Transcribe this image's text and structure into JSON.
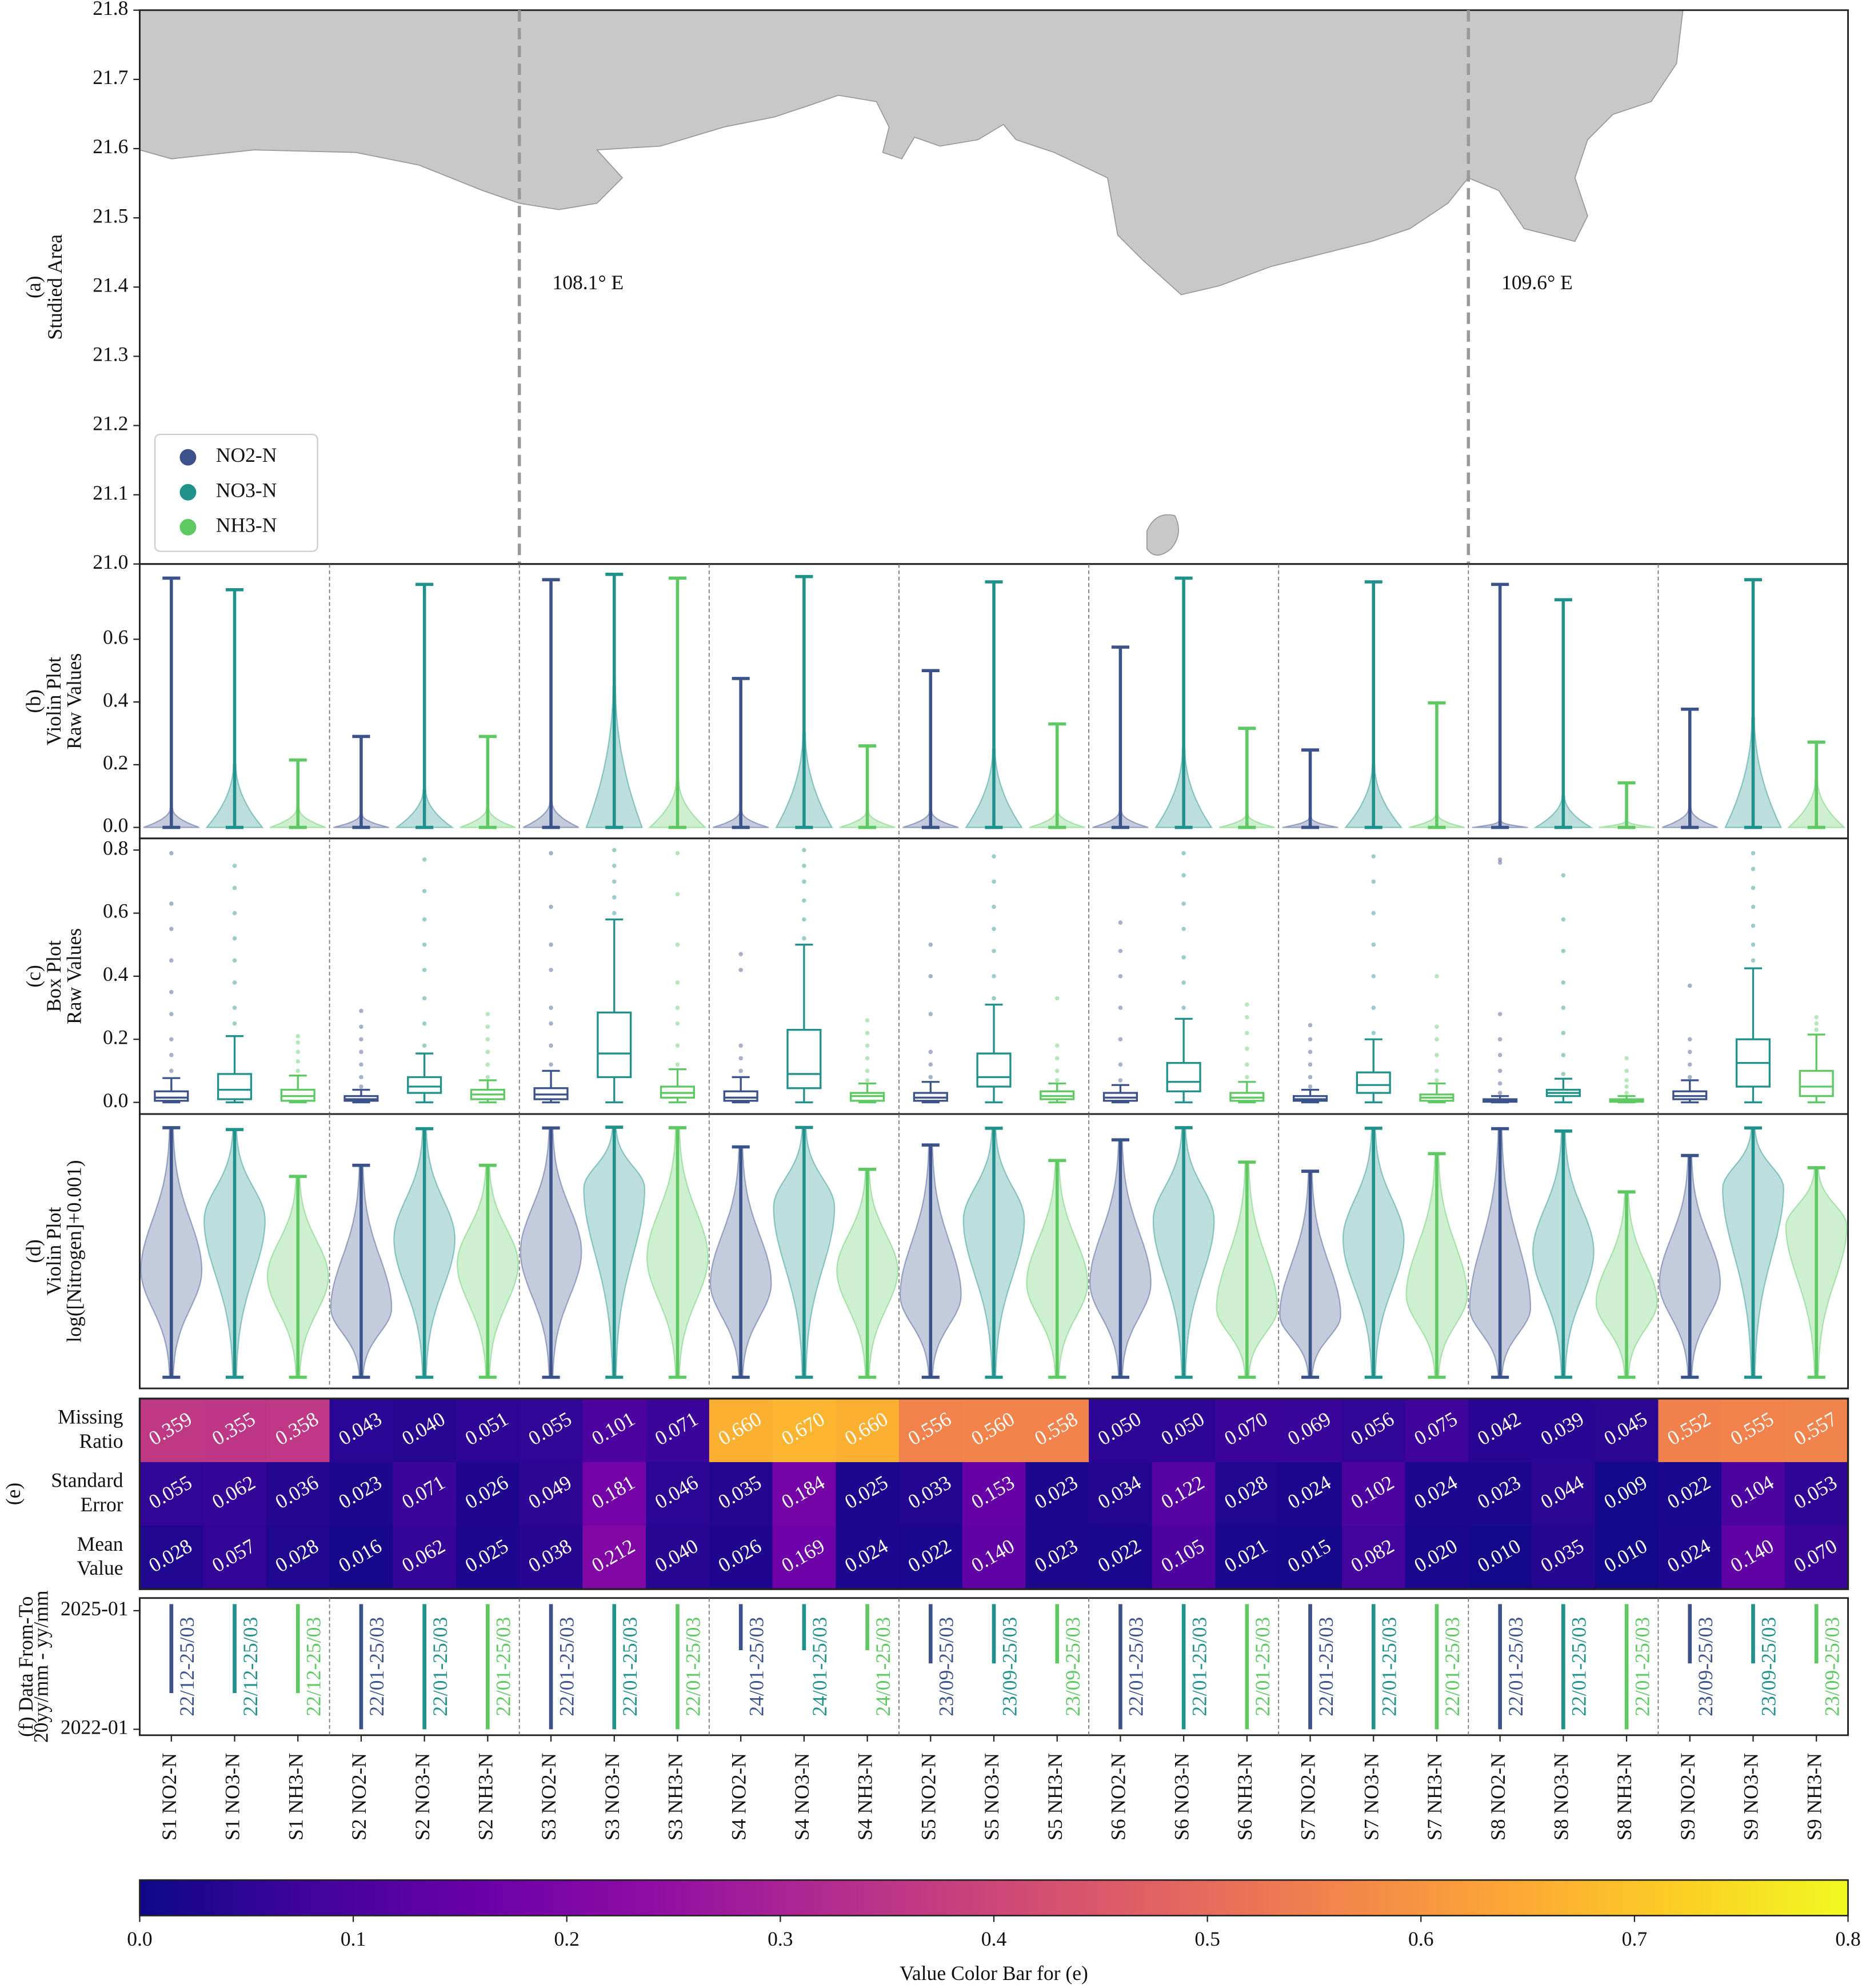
{
  "chart_data": [
    {
      "type": "map",
      "ylabel": [
        "(a)",
        "Studied Area"
      ],
      "xlim": [
        107.5,
        110.2
      ],
      "ylim": [
        21,
        21.8
      ],
      "yticks": [
        {
          "value": 21,
          "label": "21.0"
        },
        21.1,
        21.2,
        21.3,
        21.4,
        21.5,
        21.6,
        21.7,
        21.8
      ],
      "vlines": [
        {
          "value": 108.1,
          "label": "108.1° E"
        },
        {
          "value": 109.6,
          "label": "109.6° E"
        }
      ],
      "series": [
        {
          "name": "NO2-N",
          "color": "#3b528b"
        },
        {
          "name": "NO3-N",
          "color": "#21918c"
        },
        {
          "name": "NH3-N",
          "color": "#5ec962"
        }
      ],
      "legend": "lower left"
    },
    {
      "type": "violin",
      "ylabel": [
        "(b)",
        "Violin Plot",
        "Raw Values"
      ],
      "ylim": [
        -0.035,
        0.84
      ],
      "yticks": [
        {
          "value": 0,
          "label": "0.0"
        },
        0.2,
        0.4,
        0.6
      ],
      "min": [
        0,
        0,
        0,
        0,
        0,
        0,
        0,
        0,
        0,
        0,
        0,
        0,
        0,
        0,
        0,
        0,
        0,
        0,
        0,
        0,
        0,
        0,
        0,
        0,
        0,
        0,
        0
      ],
      "body_top": [
        0.06,
        0.2,
        0.06,
        0.04,
        0.12,
        0.06,
        0.08,
        0.45,
        0.15,
        0.05,
        0.3,
        0.05,
        0.05,
        0.25,
        0.05,
        0.05,
        0.25,
        0.04,
        0.03,
        0.2,
        0.04,
        0.02,
        0.1,
        0.02,
        0.06,
        0.35,
        0.15
      ],
      "max": [
        0.795,
        0.758,
        0.215,
        0.29,
        0.775,
        0.29,
        0.79,
        0.807,
        0.795,
        0.475,
        0.8,
        0.26,
        0.5,
        0.783,
        0.33,
        0.575,
        0.795,
        0.316,
        0.247,
        0.783,
        0.397,
        0.775,
        0.726,
        0.142,
        0.377,
        0.79,
        0.272
      ]
    },
    {
      "type": "box",
      "ylabel": [
        "(c)",
        "Box Plot",
        "Raw Values"
      ],
      "ylim": [
        -0.037,
        0.837
      ],
      "yticks": [
        {
          "value": 0,
          "label": "0.0"
        },
        0.2,
        0.4,
        0.6,
        0.8
      ],
      "whislo": [
        0,
        0,
        0,
        0,
        0,
        0,
        0,
        0,
        0,
        0,
        0,
        0,
        0,
        0,
        0,
        0,
        0,
        0,
        0,
        0,
        0,
        0,
        0,
        0,
        0,
        0,
        0
      ],
      "q1": [
        0.005,
        0.01,
        0.005,
        0.005,
        0.03,
        0.01,
        0.01,
        0.08,
        0.015,
        0.005,
        0.045,
        0.005,
        0.005,
        0.05,
        0.01,
        0.005,
        0.035,
        0.005,
        0.005,
        0.03,
        0.005,
        0.002,
        0.02,
        0.002,
        0.01,
        0.05,
        0.02
      ],
      "median": [
        0.015,
        0.04,
        0.02,
        0.01,
        0.05,
        0.025,
        0.025,
        0.155,
        0.03,
        0.015,
        0.09,
        0.02,
        0.015,
        0.08,
        0.02,
        0.015,
        0.065,
        0.015,
        0.01,
        0.055,
        0.015,
        0.005,
        0.03,
        0.005,
        0.02,
        0.125,
        0.05
      ],
      "q3": [
        0.035,
        0.09,
        0.04,
        0.02,
        0.08,
        0.04,
        0.045,
        0.285,
        0.05,
        0.035,
        0.23,
        0.03,
        0.03,
        0.155,
        0.035,
        0.03,
        0.125,
        0.03,
        0.02,
        0.095,
        0.025,
        0.01,
        0.04,
        0.01,
        0.035,
        0.2,
        0.1
      ],
      "whishi": [
        0.077,
        0.21,
        0.085,
        0.04,
        0.155,
        0.07,
        0.1,
        0.58,
        0.105,
        0.08,
        0.5,
        0.06,
        0.065,
        0.31,
        0.06,
        0.055,
        0.265,
        0.065,
        0.04,
        0.2,
        0.06,
        0.02,
        0.075,
        0.02,
        0.07,
        0.425,
        0.215
      ],
      "outliers": [
        [
          0.1,
          0.15,
          0.2,
          0.28,
          0.35,
          0.45,
          0.55,
          0.63,
          0.79
        ],
        [
          0.25,
          0.3,
          0.38,
          0.45,
          0.52,
          0.6,
          0.68,
          0.75
        ],
        [
          0.1,
          0.13,
          0.16,
          0.19,
          0.21
        ],
        [
          0.05,
          0.08,
          0.12,
          0.16,
          0.2,
          0.24,
          0.29
        ],
        [
          0.18,
          0.25,
          0.33,
          0.42,
          0.5,
          0.58,
          0.67,
          0.77
        ],
        [
          0.08,
          0.12,
          0.16,
          0.2,
          0.24,
          0.28
        ],
        [
          0.12,
          0.18,
          0.25,
          0.3,
          0.42,
          0.5,
          0.62,
          0.79
        ],
        [
          0.6,
          0.65,
          0.7,
          0.75,
          0.8
        ],
        [
          0.12,
          0.18,
          0.25,
          0.3,
          0.38,
          0.5,
          0.66,
          0.79
        ],
        [
          0.1,
          0.14,
          0.18,
          0.42,
          0.47
        ],
        [
          0.52,
          0.58,
          0.64,
          0.7,
          0.75,
          0.8
        ],
        [
          0.07,
          0.1,
          0.14,
          0.18,
          0.22,
          0.26
        ],
        [
          0.08,
          0.12,
          0.16,
          0.28,
          0.4,
          0.5
        ],
        [
          0.33,
          0.4,
          0.48,
          0.55,
          0.62,
          0.7,
          0.78
        ],
        [
          0.07,
          0.1,
          0.14,
          0.18,
          0.33
        ],
        [
          0.07,
          0.12,
          0.2,
          0.3,
          0.4,
          0.48,
          0.57
        ],
        [
          0.3,
          0.38,
          0.46,
          0.55,
          0.63,
          0.72,
          0.79
        ],
        [
          0.08,
          0.12,
          0.17,
          0.22,
          0.27,
          0.31
        ],
        [
          0.05,
          0.08,
          0.12,
          0.16,
          0.2,
          0.245
        ],
        [
          0.22,
          0.3,
          0.4,
          0.5,
          0.6,
          0.7,
          0.78
        ],
        [
          0.07,
          0.1,
          0.15,
          0.2,
          0.24,
          0.4
        ],
        [
          0.03,
          0.06,
          0.1,
          0.15,
          0.2,
          0.28,
          0.76,
          0.77
        ],
        [
          0.09,
          0.15,
          0.22,
          0.3,
          0.38,
          0.48,
          0.58,
          0.72
        ],
        [
          0.03,
          0.05,
          0.07,
          0.1,
          0.14
        ],
        [
          0.08,
          0.12,
          0.16,
          0.2,
          0.37
        ],
        [
          0.45,
          0.5,
          0.56,
          0.62,
          0.68,
          0.74,
          0.79
        ],
        [
          0.23,
          0.25,
          0.27
        ]
      ]
    },
    {
      "type": "violin",
      "ylabel": [
        "(d)",
        "Violin Plot",
        "log([Nitrogen]+0.001)"
      ],
      "ylim": [
        -3.13,
        0.06
      ],
      "min": [
        -3,
        -3,
        -3,
        -3,
        -3,
        -3,
        -3,
        -3,
        -3,
        -3,
        -3,
        -3,
        -3,
        -3,
        -3,
        -3,
        -3,
        -3,
        -3,
        -3,
        -3,
        -3,
        -3,
        -3,
        -3,
        -3,
        -3
      ],
      "mode": [
        -1.76,
        -1.17,
        -1.83,
        -2.2,
        -1.39,
        -1.68,
        -1.54,
        -0.8,
        -1.61,
        -1.91,
        -1.02,
        -1.76,
        -2.05,
        -1.17,
        -1.91,
        -1.91,
        -1.17,
        -2.2,
        -2.28,
        -1.39,
        -2.05,
        -2.2,
        -1.54,
        -2.13,
        -1.91,
        -0.8,
        -1.24
      ],
      "max": [
        -0.099,
        -0.12,
        -0.665,
        -0.536,
        -0.11,
        -0.536,
        -0.102,
        -0.093,
        -0.099,
        -0.322,
        -0.096,
        -0.583,
        -0.3,
        -0.105,
        -0.48,
        -0.24,
        -0.099,
        -0.499,
        -0.605,
        -0.105,
        -0.4,
        -0.11,
        -0.138,
        -0.845,
        -0.422,
        -0.102,
        -0.564
      ]
    },
    {
      "type": "heatmap",
      "side_label": "(e)",
      "colormap": "plasma",
      "rows": [
        {
          "label": [
            "Missing",
            "Ratio"
          ],
          "values": [
            0.359,
            0.355,
            0.358,
            0.043,
            0.04,
            0.051,
            0.055,
            0.101,
            0.071,
            0.66,
            0.67,
            0.66,
            0.556,
            0.56,
            0.558,
            0.05,
            0.05,
            0.07,
            0.069,
            0.056,
            0.075,
            0.042,
            0.039,
            0.045,
            0.552,
            0.555,
            0.557
          ],
          "value_labels": [
            "0.359",
            "0.355",
            "0.358",
            "0.043",
            "0.040",
            "0.051",
            "0.055",
            "0.101",
            "0.071",
            "0.660",
            "0.670",
            "0.660",
            "0.556",
            "0.560",
            "0.558",
            "0.050",
            "0.050",
            "0.070",
            "0.069",
            "0.056",
            "0.075",
            "0.042",
            "0.039",
            "0.045",
            "0.552",
            "0.555",
            "0.557"
          ]
        },
        {
          "label": [
            "Standard",
            "Error"
          ],
          "values": [
            0.055,
            0.062,
            0.036,
            0.023,
            0.071,
            0.026,
            0.049,
            0.181,
            0.046,
            0.035,
            0.184,
            0.025,
            0.033,
            0.153,
            0.023,
            0.034,
            0.122,
            0.028,
            0.024,
            0.102,
            0.024,
            0.023,
            0.044,
            0.009,
            0.022,
            0.104,
            0.053
          ],
          "value_labels": [
            "0.055",
            "0.062",
            "0.036",
            "0.023",
            "0.071",
            "0.026",
            "0.049",
            "0.181",
            "0.046",
            "0.035",
            "0.184",
            "0.025",
            "0.033",
            "0.153",
            "0.023",
            "0.034",
            "0.122",
            "0.028",
            "0.024",
            "0.102",
            "0.024",
            "0.023",
            "0.044",
            "0.009",
            "0.022",
            "0.104",
            "0.053"
          ]
        },
        {
          "label": [
            "Mean",
            "Value"
          ],
          "values": [
            0.028,
            0.057,
            0.028,
            0.016,
            0.062,
            0.025,
            0.038,
            0.212,
            0.04,
            0.026,
            0.169,
            0.024,
            0.022,
            0.14,
            0.023,
            0.022,
            0.105,
            0.021,
            0.015,
            0.082,
            0.02,
            0.01,
            0.035,
            0.01,
            0.024,
            0.14,
            0.07
          ],
          "value_labels": [
            "0.028",
            "0.057",
            "0.028",
            "0.016",
            "0.062",
            "0.025",
            "0.038",
            "0.212",
            "0.040",
            "0.026",
            "0.169",
            "0.024",
            "0.022",
            "0.140",
            "0.023",
            "0.022",
            "0.105",
            "0.021",
            "0.015",
            "0.082",
            "0.020",
            "0.010",
            "0.035",
            "0.010",
            "0.024",
            "0.140",
            "0.070"
          ]
        }
      ]
    },
    {
      "type": "range",
      "ylabel": [
        "(f) Data From-To",
        "20yy/mm - yy/mm"
      ],
      "ylim": [
        2021.85,
        2025.32
      ],
      "yticks": [
        {
          "value": 2025,
          "label": "2025-01"
        },
        {
          "value": 2022,
          "label": "2022-01"
        }
      ],
      "categories": [
        "S1 NO2-N",
        "S1 NO3-N",
        "S1 NH3-N",
        "S2 NO2-N",
        "S2 NO3-N",
        "S2 NH3-N",
        "S3 NO2-N",
        "S3 NO3-N",
        "S3 NH3-N",
        "S4 NO2-N",
        "S4 NO3-N",
        "S4 NH3-N",
        "S5 NO2-N",
        "S5 NO3-N",
        "S5 NH3-N",
        "S6 NO2-N",
        "S6 NO3-N",
        "S6 NH3-N",
        "S7 NO2-N",
        "S7 NO3-N",
        "S7 NH3-N",
        "S8 NO2-N",
        "S8 NO3-N",
        "S8 NH3-N",
        "S9 NO2-N",
        "S9 NO3-N",
        "S9 NH3-N"
      ],
      "start": [
        2022.917,
        2022.917,
        2022.917,
        2022,
        2022,
        2022,
        2022,
        2022,
        2022,
        2024,
        2024,
        2024,
        2023.667,
        2023.667,
        2023.667,
        2022,
        2022,
        2022,
        2022,
        2022,
        2022,
        2022,
        2022,
        2022,
        2023.667,
        2023.667,
        2023.667
      ],
      "end": [
        2025.167,
        2025.167,
        2025.167,
        2025.167,
        2025.167,
        2025.167,
        2025.167,
        2025.167,
        2025.167,
        2025.167,
        2025.167,
        2025.167,
        2025.167,
        2025.167,
        2025.167,
        2025.167,
        2025.167,
        2025.167,
        2025.167,
        2025.167,
        2025.167,
        2025.167,
        2025.167,
        2025.167,
        2025.167,
        2025.167,
        2025.167
      ],
      "value_labels": [
        "22/12-25/03",
        "22/12-25/03",
        "22/12-25/03",
        "22/01-25/03",
        "22/01-25/03",
        "22/01-25/03",
        "22/01-25/03",
        "22/01-25/03",
        "22/01-25/03",
        "24/01-25/03",
        "24/01-25/03",
        "24/01-25/03",
        "23/09-25/03",
        "23/09-25/03",
        "23/09-25/03",
        "22/01-25/03",
        "22/01-25/03",
        "22/01-25/03",
        "22/01-25/03",
        "22/01-25/03",
        "22/01-25/03",
        "22/01-25/03",
        "22/01-25/03",
        "22/01-25/03",
        "23/09-25/03",
        "23/09-25/03",
        "23/09-25/03"
      ]
    },
    {
      "type": "colorbar",
      "xlabel": "Value Color Bar for (e)",
      "xlim": [
        0,
        0.8
      ],
      "xticks": [
        {
          "value": 0,
          "label": "0.0"
        },
        0.1,
        0.2,
        0.3,
        0.4,
        0.5,
        0.6,
        0.7,
        0.8
      ]
    }
  ]
}
